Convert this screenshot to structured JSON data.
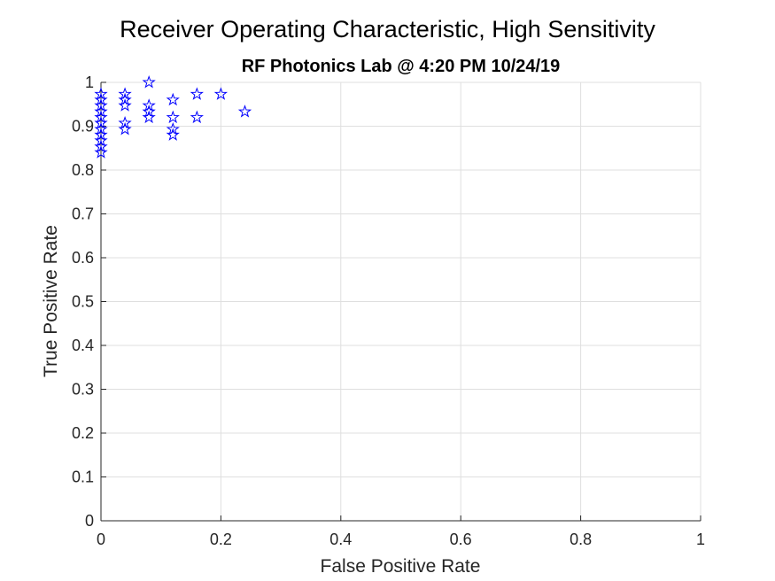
{
  "chart_data": {
    "type": "scatter",
    "title": "Receiver Operating Characteristic, High Sensitivity",
    "subtitle": "RF Photonics Lab @ 4:20 PM 10/24/19",
    "xlabel": "False Positive Rate",
    "ylabel": "True Positive Rate",
    "xlim": [
      0,
      1
    ],
    "ylim": [
      0,
      1
    ],
    "xticks": [
      "0",
      "0.2",
      "0.4",
      "0.6",
      "0.8",
      "1"
    ],
    "yticks": [
      "0",
      "0.1",
      "0.2",
      "0.3",
      "0.4",
      "0.5",
      "0.6",
      "0.7",
      "0.8",
      "0.9",
      "1"
    ],
    "grid": true,
    "marker": "pentagram",
    "marker_color": "#0000ff",
    "series": [
      {
        "points": [
          [
            0,
            0.84
          ],
          [
            0,
            0.853
          ],
          [
            0,
            0.867
          ],
          [
            0,
            0.88
          ],
          [
            0,
            0.893
          ],
          [
            0,
            0.907
          ],
          [
            0,
            0.92
          ],
          [
            0,
            0.933
          ],
          [
            0,
            0.947
          ],
          [
            0,
            0.96
          ],
          [
            0,
            0.973
          ],
          [
            0.04,
            0.893
          ],
          [
            0.04,
            0.907
          ],
          [
            0.04,
            0.947
          ],
          [
            0.04,
            0.96
          ],
          [
            0.04,
            0.973
          ],
          [
            0.08,
            1.0
          ],
          [
            0.08,
            0.947
          ],
          [
            0.08,
            0.933
          ],
          [
            0.08,
            0.92
          ],
          [
            0.12,
            0.96
          ],
          [
            0.12,
            0.92
          ],
          [
            0.12,
            0.893
          ],
          [
            0.12,
            0.88
          ],
          [
            0.16,
            0.973
          ],
          [
            0.16,
            0.92
          ],
          [
            0.2,
            0.973
          ],
          [
            0.24,
            0.933
          ]
        ]
      }
    ]
  }
}
